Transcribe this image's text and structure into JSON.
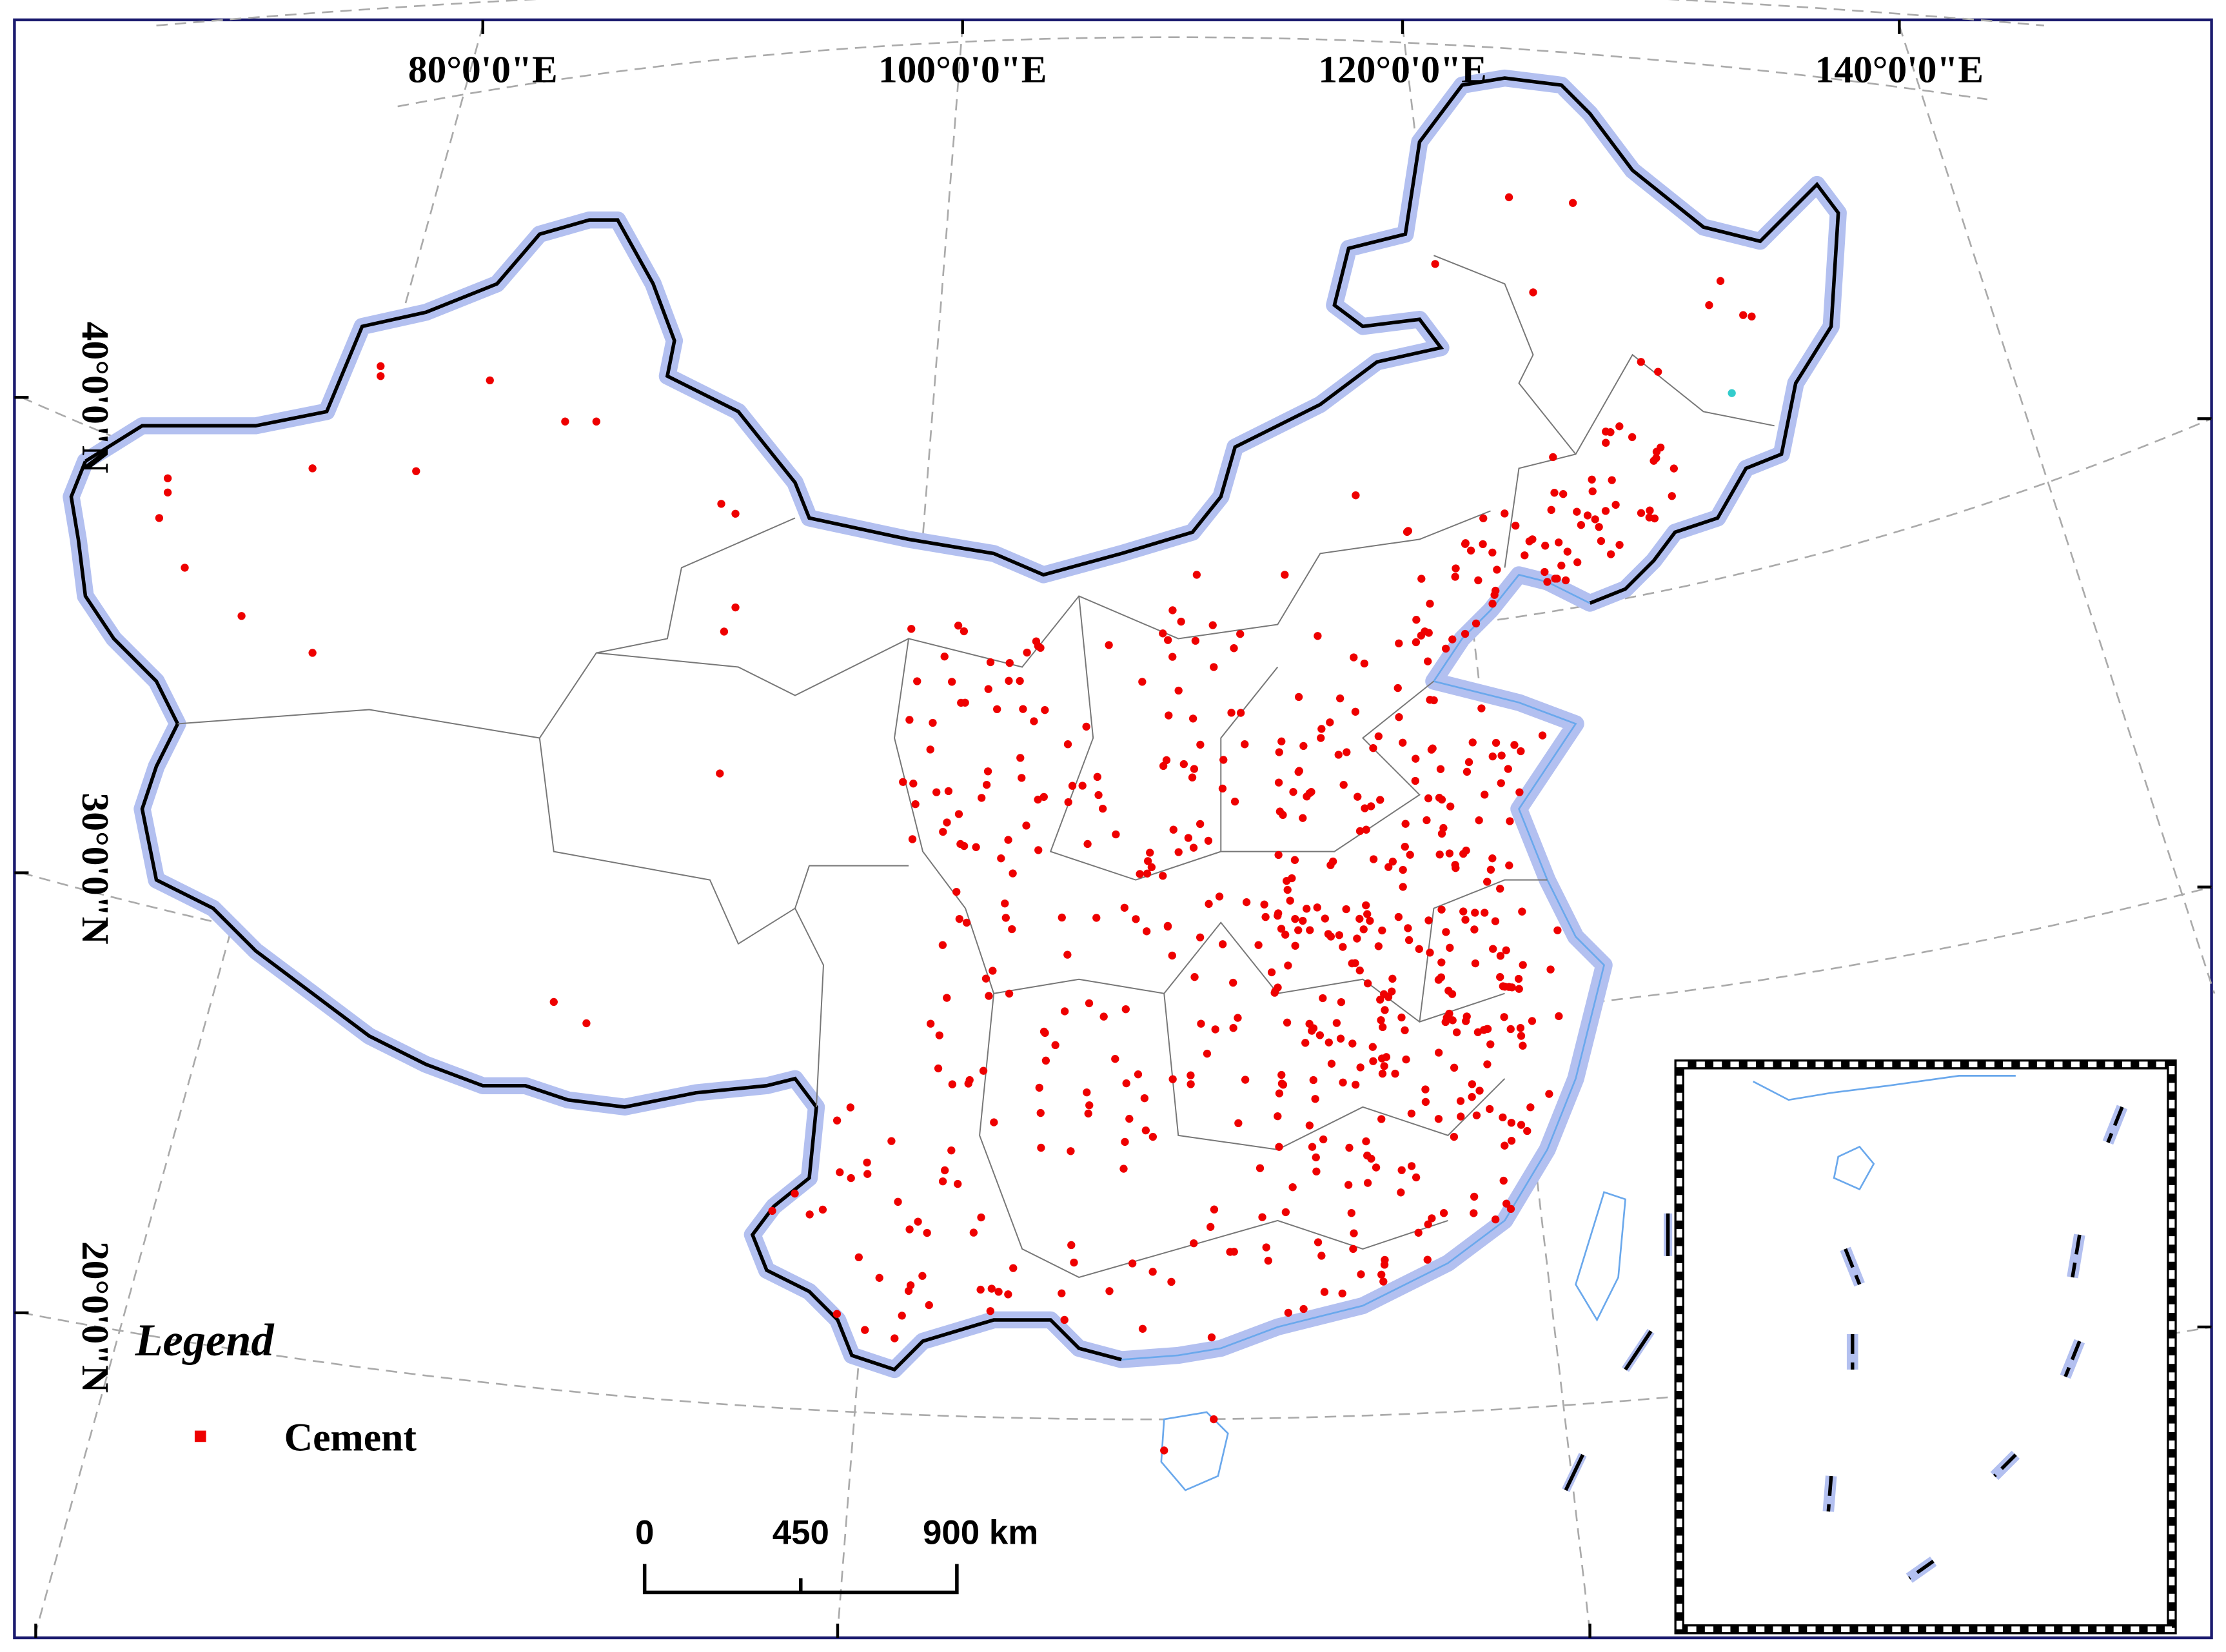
{
  "graticule": {
    "longitude_labels": [
      "80°0'0\"E",
      "100°0'0\"E",
      "120°0'0\"E",
      "140°0'0\"E"
    ],
    "latitude_labels": [
      "40°0'0\"N",
      "30°0'0\"N",
      "20°0'0\"N"
    ]
  },
  "legend": {
    "title": "Legend",
    "items": [
      "Cement"
    ]
  },
  "scale_bar": {
    "labels": [
      "0",
      "450",
      "900 km"
    ]
  }
}
